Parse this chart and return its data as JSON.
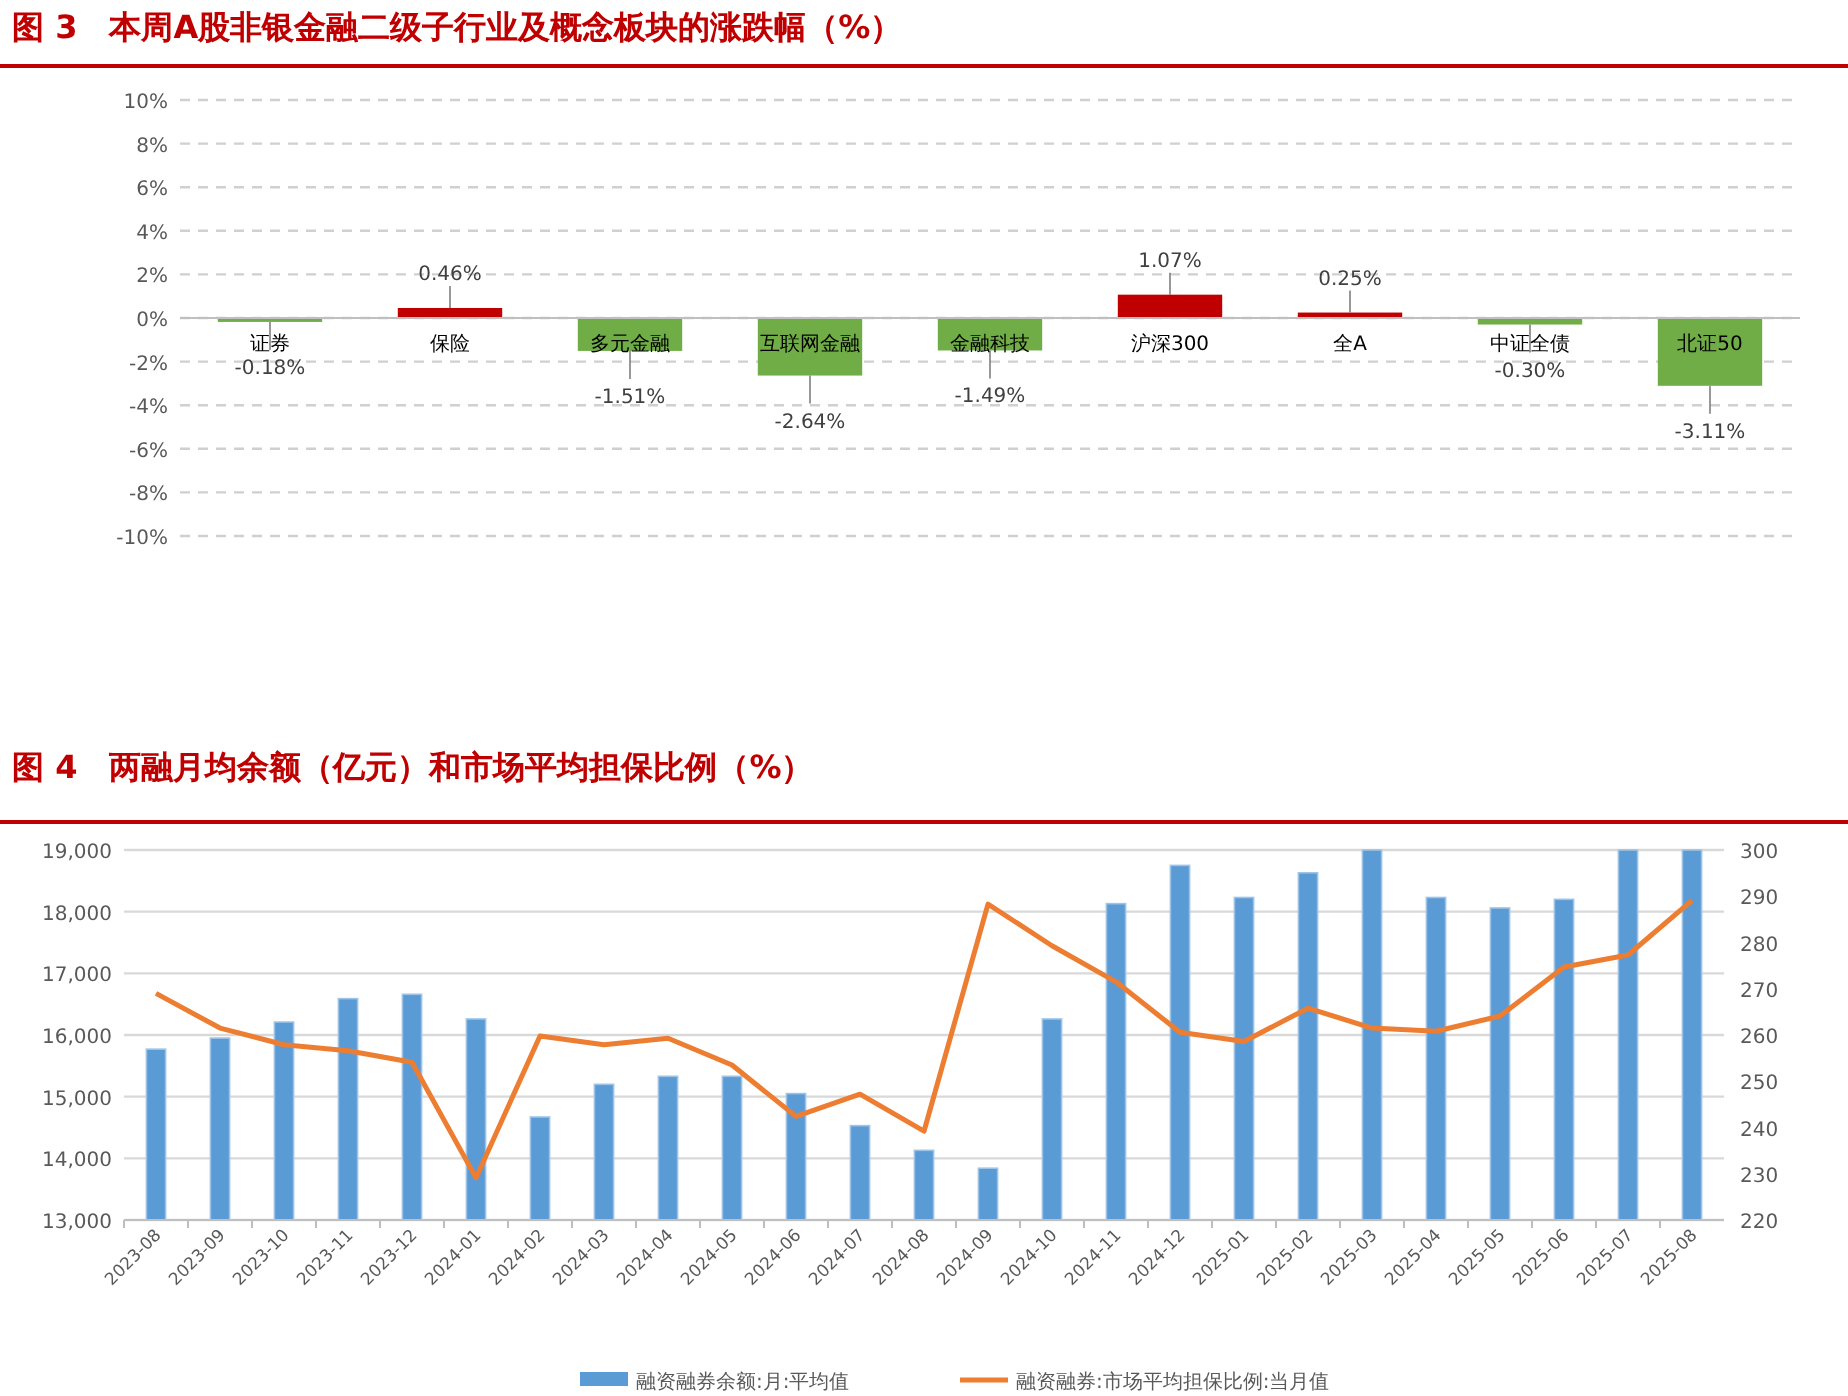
{
  "chart_data": [
    {
      "type": "bar",
      "title": "图 3　本周A股非银金融二级子行业及概念板块的涨跌幅（%）",
      "categories": [
        "证券",
        "保险",
        "多元金融",
        "互联网金融",
        "金融科技",
        "沪深300",
        "全A",
        "中证全债",
        "北证50"
      ],
      "values": [
        -0.18,
        0.46,
        -1.51,
        -2.64,
        -1.49,
        1.07,
        0.25,
        -0.3,
        -3.11
      ],
      "colors": [
        "#70ad47",
        "#c00000",
        "#70ad47",
        "#70ad47",
        "#70ad47",
        "#c00000",
        "#c00000",
        "#70ad47",
        "#70ad47"
      ],
      "value_labels": [
        "-0.18%",
        "0.46%",
        "-1.51%",
        "-2.64%",
        "-1.49%",
        "1.07%",
        "0.25%",
        "-0.30%",
        "-3.11%"
      ],
      "ylim": [
        -10,
        10
      ],
      "yticks": [
        {
          "value": -10,
          "label": "-10%"
        },
        {
          "value": -8,
          "label": "-8%"
        },
        {
          "value": -6,
          "label": "-6%"
        },
        {
          "value": -4,
          "label": "-4%"
        },
        {
          "value": -2,
          "label": "-2%"
        },
        {
          "value": 0,
          "label": "0%"
        },
        {
          "value": 2,
          "label": "2%"
        },
        {
          "value": 4,
          "label": "4%"
        },
        {
          "value": 6,
          "label": "6%"
        },
        {
          "value": 8,
          "label": "8%"
        },
        {
          "value": 10,
          "label": "10%"
        }
      ],
      "grid": "y",
      "legend": false
    },
    {
      "type": "bar",
      "title": "图 4　两融月均余额（亿元）和市场平均担保比例（%）",
      "categories": [
        "2023-08",
        "2023-09",
        "2023-10",
        "2023-11",
        "2023-12",
        "2024-01",
        "2024-02",
        "2024-03",
        "2024-04",
        "2024-05",
        "2024-06",
        "2024-07",
        "2024-08",
        "2024-09",
        "2024-10",
        "2024-11",
        "2024-12",
        "2025-01",
        "2025-02",
        "2025-03",
        "2025-04",
        "2025-05",
        "2025-06",
        "2025-07",
        "2025-08"
      ],
      "series": [
        {
          "name": "融资融券余额:月:平均值",
          "type": "bar",
          "color": "#5b9bd5",
          "values": [
            15770,
            15950,
            16210,
            16590,
            16660,
            16260,
            14670,
            15200,
            15330,
            15330,
            15050,
            14530,
            14130,
            13840,
            16260,
            18130,
            18750,
            18230,
            18630,
            19000,
            18230,
            18060,
            18200,
            19000,
            19000
          ]
        },
        {
          "name": "融资融券:市场平均担保比例:当月值",
          "type": "line",
          "axis": "y2",
          "color": "#ed7d31",
          "values": [
            269.0,
            261.5,
            257.9,
            256.6,
            254.1,
            229.1,
            259.8,
            257.9,
            259.3,
            253.5,
            242.4,
            247.2,
            239.2,
            288.3,
            279.3,
            271.5,
            260.6,
            258.6,
            265.8,
            261.5,
            260.8,
            264.1,
            274.7,
            277.3,
            289.1
          ]
        }
      ],
      "ylim": [
        13000,
        19000
      ],
      "yticks": [
        {
          "value": 13000,
          "label": "13,000"
        },
        {
          "value": 14000,
          "label": "14,000"
        },
        {
          "value": 15000,
          "label": "15,000"
        },
        {
          "value": 16000,
          "label": "16,000"
        },
        {
          "value": 17000,
          "label": "17,000"
        },
        {
          "value": 18000,
          "label": "18,000"
        },
        {
          "value": 19000,
          "label": "19,000"
        }
      ],
      "y2lim": [
        220,
        300
      ],
      "y2ticks": [
        220,
        230,
        240,
        250,
        260,
        270,
        280,
        290,
        300
      ],
      "grid": "y",
      "legend": "bottom",
      "line_style": "solid",
      "marker": "none"
    }
  ]
}
